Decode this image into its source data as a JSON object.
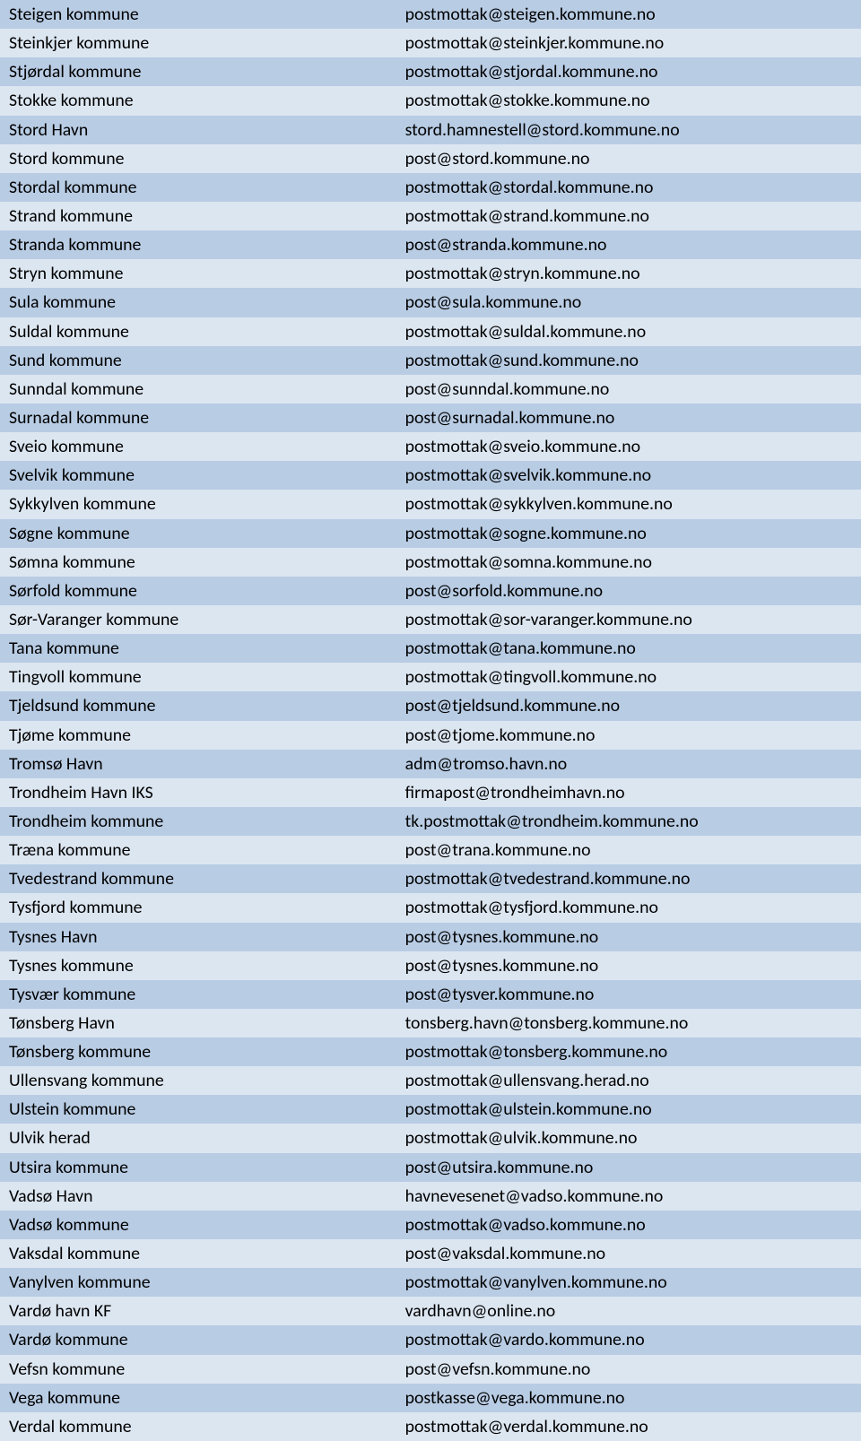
{
  "colors": {
    "row_odd_bg": "#b8cce4",
    "row_even_bg": "#dce6f1",
    "text_color": "#000000"
  },
  "table": {
    "rows": [
      {
        "name": "Steigen kommune",
        "email": "postmottak@steigen.kommune.no"
      },
      {
        "name": "Steinkjer kommune",
        "email": "postmottak@steinkjer.kommune.no"
      },
      {
        "name": "Stjørdal kommune",
        "email": "postmottak@stjordal.kommune.no"
      },
      {
        "name": "Stokke kommune",
        "email": "postmottak@stokke.kommune.no"
      },
      {
        "name": "Stord Havn",
        "email": "stord.hamnestell@stord.kommune.no"
      },
      {
        "name": "Stord kommune",
        "email": "post@stord.kommune.no"
      },
      {
        "name": "Stordal kommune",
        "email": "postmottak@stordal.kommune.no"
      },
      {
        "name": "Strand kommune",
        "email": "postmottak@strand.kommune.no"
      },
      {
        "name": "Stranda kommune",
        "email": "post@stranda.kommune.no"
      },
      {
        "name": "Stryn kommune",
        "email": "postmottak@stryn.kommune.no"
      },
      {
        "name": "Sula kommune",
        "email": "post@sula.kommune.no"
      },
      {
        "name": "Suldal kommune",
        "email": "postmottak@suldal.kommune.no"
      },
      {
        "name": "Sund kommune",
        "email": "postmottak@sund.kommune.no"
      },
      {
        "name": "Sunndal kommune",
        "email": "post@sunndal.kommune.no"
      },
      {
        "name": "Surnadal kommune",
        "email": "post@surnadal.kommune.no"
      },
      {
        "name": "Sveio kommune",
        "email": "postmottak@sveio.kommune.no"
      },
      {
        "name": "Svelvik kommune",
        "email": "postmottak@svelvik.kommune.no"
      },
      {
        "name": "Sykkylven kommune",
        "email": "postmottak@sykkylven.kommune.no"
      },
      {
        "name": "Søgne kommune",
        "email": "postmottak@sogne.kommune.no"
      },
      {
        "name": "Sømna kommune",
        "email": "postmottak@somna.kommune.no"
      },
      {
        "name": "Sørfold kommune",
        "email": "post@sorfold.kommune.no"
      },
      {
        "name": "Sør-Varanger kommune",
        "email": "postmottak@sor-varanger.kommune.no"
      },
      {
        "name": "Tana kommune",
        "email": "postmottak@tana.kommune.no"
      },
      {
        "name": "Tingvoll kommune",
        "email": "postmottak@tingvoll.kommune.no"
      },
      {
        "name": "Tjeldsund kommune",
        "email": "post@tjeldsund.kommune.no"
      },
      {
        "name": "Tjøme kommune",
        "email": "post@tjome.kommune.no"
      },
      {
        "name": "Tromsø Havn",
        "email": "adm@tromso.havn.no"
      },
      {
        "name": "Trondheim Havn IKS",
        "email": "firmapost@trondheimhavn.no"
      },
      {
        "name": "Trondheim kommune",
        "email": "tk.postmottak@trondheim.kommune.no"
      },
      {
        "name": "Træna kommune",
        "email": "post@trana.kommune.no"
      },
      {
        "name": "Tvedestrand kommune",
        "email": "postmottak@tvedestrand.kommune.no"
      },
      {
        "name": "Tysfjord kommune",
        "email": "postmottak@tysfjord.kommune.no"
      },
      {
        "name": "Tysnes Havn",
        "email": "post@tysnes.kommune.no"
      },
      {
        "name": "Tysnes kommune",
        "email": "post@tysnes.kommune.no"
      },
      {
        "name": "Tysvær kommune",
        "email": "post@tysver.kommune.no"
      },
      {
        "name": "Tønsberg Havn",
        "email": "tonsberg.havn@tonsberg.kommune.no"
      },
      {
        "name": "Tønsberg kommune",
        "email": "postmottak@tonsberg.kommune.no"
      },
      {
        "name": "Ullensvang kommune",
        "email": "postmottak@ullensvang.herad.no"
      },
      {
        "name": "Ulstein kommune",
        "email": "postmottak@ulstein.kommune.no"
      },
      {
        "name": "Ulvik herad",
        "email": "postmottak@ulvik.kommune.no"
      },
      {
        "name": "Utsira kommune",
        "email": "post@utsira.kommune.no"
      },
      {
        "name": "Vadsø Havn",
        "email": "havnevesenet@vadso.kommune.no"
      },
      {
        "name": "Vadsø kommune",
        "email": "postmottak@vadso.kommune.no"
      },
      {
        "name": "Vaksdal kommune",
        "email": "post@vaksdal.kommune.no"
      },
      {
        "name": "Vanylven kommune",
        "email": "postmottak@vanylven.kommune.no"
      },
      {
        "name": "Vardø havn KF",
        "email": "vardhavn@online.no"
      },
      {
        "name": "Vardø kommune",
        "email": "postmottak@vardo.kommune.no"
      },
      {
        "name": "Vefsn kommune",
        "email": "post@vefsn.kommune.no"
      },
      {
        "name": "Vega kommune",
        "email": "postkasse@vega.kommune.no"
      },
      {
        "name": "Verdal kommune",
        "email": "postmottak@verdal.kommune.no"
      }
    ]
  }
}
